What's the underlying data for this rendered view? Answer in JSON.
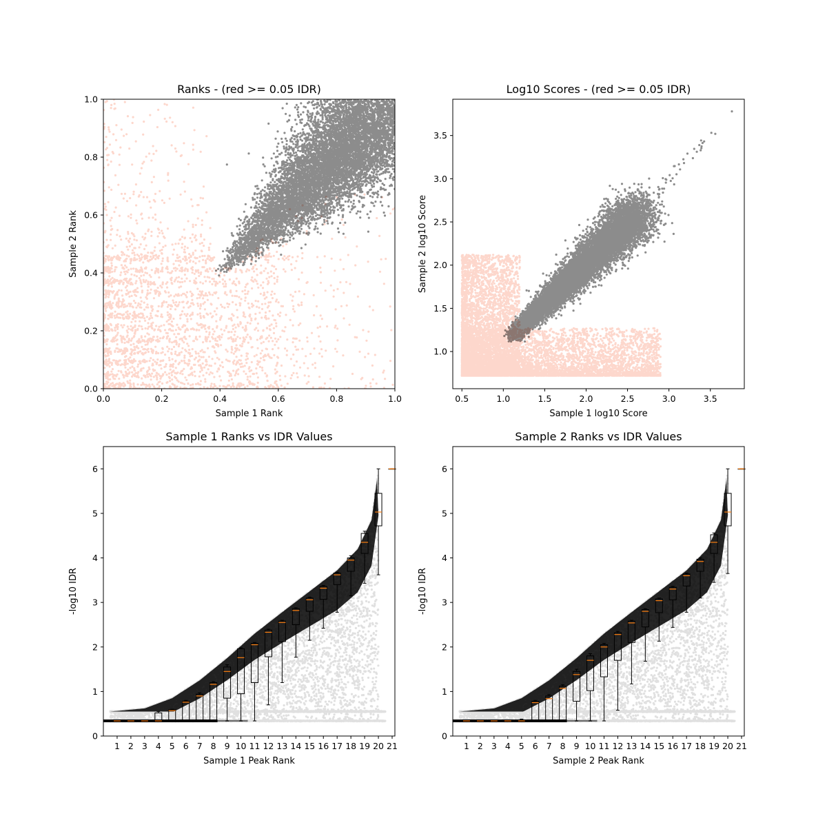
{
  "figure": {
    "background": "#ffffff",
    "colors": {
      "pass": "#000000",
      "fail": "#fa8c6e",
      "median": "#ff7f0e"
    }
  },
  "chart_data": [
    {
      "id": "ranks",
      "type": "scatter",
      "title": "Ranks - (red >= 0.05 IDR)",
      "xlabel": "Sample 1 Rank",
      "ylabel": "Sample 2 Rank",
      "xlim": [
        0,
        1
      ],
      "ylim": [
        0,
        1
      ],
      "xticks": [
        "0.0",
        "0.2",
        "0.4",
        "0.6",
        "0.8",
        "1.0"
      ],
      "yticks": [
        "0.0",
        "0.2",
        "0.4",
        "0.6",
        "0.8",
        "1.0"
      ],
      "series": [
        {
          "color": "#000000",
          "region": "wedge along diagonal: x>=0.38, y>=0.35, bounded by lower curve from (0.40,0.35) to (1.0,0.95) and upper curve from (0.38,0.42) to (0.95,1.0)"
        },
        {
          "color": "#fa8c6e",
          "region": "remaining points, dense near x<0.5 or y<0.5 with banded structure at low ranks"
        }
      ]
    },
    {
      "id": "scores",
      "type": "scatter",
      "title": "Log10 Scores - (red >= 0.05 IDR)",
      "xlabel": "Sample 1 log10 Score",
      "ylabel": "Sample 2 log10 Score",
      "xlim": [
        0.39,
        3.91
      ],
      "ylim": [
        0.57,
        3.92
      ],
      "xticks": [
        0.5,
        1.0,
        1.5,
        2.0,
        2.5,
        3.0,
        3.5
      ],
      "yticks": [
        1.0,
        1.5,
        2.0,
        2.5,
        3.0,
        3.5
      ],
      "series": [
        {
          "color": "#000000",
          "region": "elongated cloud from (1.0,1.12) to (2.8,2.85), outliers up to (3.76,3.78)"
        },
        {
          "color": "#fa8c6e",
          "region": "x from 0.5 to 2.9 at y 0.72 to 1.3; also x 0.5 to 1.1 up to y 2.2"
        }
      ]
    },
    {
      "id": "s1_idr",
      "type": "scatter",
      "title": "Sample 1 Ranks vs IDR Values",
      "xlabel": "Sample 1 Peak Rank",
      "ylabel": "-log10 IDR",
      "xlim": [
        0,
        21.2
      ],
      "ylim": [
        0,
        6.5
      ],
      "xticks": [
        1,
        2,
        3,
        4,
        5,
        6,
        7,
        8,
        9,
        10,
        11,
        12,
        13,
        14,
        15,
        16,
        17,
        18,
        19,
        20,
        21
      ],
      "yticks": [
        0,
        1,
        2,
        3,
        4,
        5,
        6
      ],
      "upper_envelope": [
        [
          0.5,
          0.55
        ],
        [
          3,
          0.62
        ],
        [
          5,
          0.85
        ],
        [
          7,
          1.25
        ],
        [
          9,
          1.75
        ],
        [
          11,
          2.3
        ],
        [
          13,
          2.78
        ],
        [
          15,
          3.25
        ],
        [
          17,
          3.72
        ],
        [
          18.5,
          4.2
        ],
        [
          19.5,
          4.85
        ],
        [
          20,
          6.0
        ]
      ],
      "boxes": [
        {
          "pos": 1,
          "q1": 0.34,
          "median": 0.34,
          "q3": 0.34,
          "wlo": 0.34,
          "whi": 0.34
        },
        {
          "pos": 2,
          "q1": 0.34,
          "median": 0.34,
          "q3": 0.34,
          "wlo": 0.34,
          "whi": 0.34
        },
        {
          "pos": 3,
          "q1": 0.34,
          "median": 0.34,
          "q3": 0.34,
          "wlo": 0.34,
          "whi": 0.34
        },
        {
          "pos": 4,
          "q1": 0.34,
          "median": 0.34,
          "q3": 0.52,
          "wlo": 0.34,
          "whi": 0.55
        },
        {
          "pos": 5,
          "q1": 0.34,
          "median": 0.57,
          "q3": 0.59,
          "wlo": 0.34,
          "whi": 0.6
        },
        {
          "pos": 6,
          "q1": 0.34,
          "median": 0.76,
          "q3": 0.78,
          "wlo": 0.34,
          "whi": 0.8
        },
        {
          "pos": 7,
          "q1": 0.34,
          "median": 0.9,
          "q3": 0.94,
          "wlo": 0.34,
          "whi": 0.97
        },
        {
          "pos": 8,
          "q1": 0.34,
          "median": 1.16,
          "q3": 1.2,
          "wlo": 0.34,
          "whi": 1.22
        },
        {
          "pos": 9,
          "q1": 0.85,
          "median": 1.45,
          "q3": 1.55,
          "wlo": 0.34,
          "whi": 1.6
        },
        {
          "pos": 10,
          "q1": 0.95,
          "median": 1.76,
          "q3": 1.96,
          "wlo": 0.34,
          "whi": 1.98
        },
        {
          "pos": 11,
          "q1": 1.2,
          "median": 2.05,
          "q3": 2.08,
          "wlo": 0.34,
          "whi": 2.1
        },
        {
          "pos": 12,
          "q1": 1.78,
          "median": 2.33,
          "q3": 2.38,
          "wlo": 0.7,
          "whi": 2.4
        },
        {
          "pos": 13,
          "q1": 2.12,
          "median": 2.55,
          "q3": 2.58,
          "wlo": 1.2,
          "whi": 2.6
        },
        {
          "pos": 14,
          "q1": 2.5,
          "median": 2.82,
          "q3": 2.86,
          "wlo": 1.77,
          "whi": 2.88
        },
        {
          "pos": 15,
          "q1": 2.8,
          "median": 3.06,
          "q3": 3.1,
          "wlo": 2.15,
          "whi": 3.12
        },
        {
          "pos": 16,
          "q1": 3.07,
          "median": 3.32,
          "q3": 3.36,
          "wlo": 2.42,
          "whi": 3.38
        },
        {
          "pos": 17,
          "q1": 3.4,
          "median": 3.62,
          "q3": 3.66,
          "wlo": 2.78,
          "whi": 3.68
        },
        {
          "pos": 18,
          "q1": 3.7,
          "median": 3.95,
          "q3": 4.0,
          "wlo": 3.15,
          "whi": 4.05
        },
        {
          "pos": 19,
          "q1": 4.1,
          "median": 4.35,
          "q3": 4.55,
          "wlo": 3.43,
          "whi": 4.6
        },
        {
          "pos": 20,
          "q1": 4.72,
          "median": 5.03,
          "q3": 5.45,
          "wlo": 3.62,
          "whi": 6.0
        },
        {
          "pos": 21,
          "q1": 6.0,
          "median": 6.0,
          "q3": 6.0,
          "wlo": 6.0,
          "whi": 6.0
        }
      ]
    },
    {
      "id": "s2_idr",
      "type": "scatter",
      "title": "Sample 2 Ranks vs IDR Values",
      "xlabel": "Sample 2 Peak Rank",
      "ylabel": "-log10 IDR",
      "xlim": [
        0,
        21.2
      ],
      "ylim": [
        0,
        6.5
      ],
      "xticks": [
        1,
        2,
        3,
        4,
        5,
        6,
        7,
        8,
        9,
        10,
        11,
        12,
        13,
        14,
        15,
        16,
        17,
        18,
        19,
        20,
        21
      ],
      "yticks": [
        0,
        1,
        2,
        3,
        4,
        5,
        6
      ],
      "upper_envelope": [
        [
          0.5,
          0.55
        ],
        [
          3,
          0.62
        ],
        [
          5,
          0.85
        ],
        [
          7,
          1.25
        ],
        [
          9,
          1.75
        ],
        [
          11,
          2.3
        ],
        [
          13,
          2.78
        ],
        [
          15,
          3.25
        ],
        [
          17,
          3.72
        ],
        [
          18.5,
          4.2
        ],
        [
          19.5,
          4.85
        ],
        [
          20,
          6.0
        ]
      ],
      "boxes": [
        {
          "pos": 1,
          "q1": 0.34,
          "median": 0.34,
          "q3": 0.34,
          "wlo": 0.34,
          "whi": 0.34
        },
        {
          "pos": 2,
          "q1": 0.34,
          "median": 0.34,
          "q3": 0.34,
          "wlo": 0.34,
          "whi": 0.34
        },
        {
          "pos": 3,
          "q1": 0.34,
          "median": 0.34,
          "q3": 0.34,
          "wlo": 0.34,
          "whi": 0.34
        },
        {
          "pos": 4,
          "q1": 0.34,
          "median": 0.34,
          "q3": 0.34,
          "wlo": 0.34,
          "whi": 0.36
        },
        {
          "pos": 5,
          "q1": 0.34,
          "median": 0.34,
          "q3": 0.36,
          "wlo": 0.34,
          "whi": 0.38
        },
        {
          "pos": 6,
          "q1": 0.34,
          "median": 0.75,
          "q3": 0.78,
          "wlo": 0.34,
          "whi": 0.8
        },
        {
          "pos": 7,
          "q1": 0.34,
          "median": 0.84,
          "q3": 0.9,
          "wlo": 0.34,
          "whi": 0.93
        },
        {
          "pos": 8,
          "q1": 0.34,
          "median": 1.07,
          "q3": 1.12,
          "wlo": 0.34,
          "whi": 1.15
        },
        {
          "pos": 9,
          "q1": 0.78,
          "median": 1.38,
          "q3": 1.45,
          "wlo": 0.34,
          "whi": 1.5
        },
        {
          "pos": 10,
          "q1": 1.02,
          "median": 1.7,
          "q3": 1.8,
          "wlo": 0.34,
          "whi": 1.85
        },
        {
          "pos": 11,
          "q1": 1.33,
          "median": 2.0,
          "q3": 2.05,
          "wlo": 0.34,
          "whi": 2.08
        },
        {
          "pos": 12,
          "q1": 1.7,
          "median": 2.28,
          "q3": 2.32,
          "wlo": 0.58,
          "whi": 2.35
        },
        {
          "pos": 13,
          "q1": 2.1,
          "median": 2.54,
          "q3": 2.58,
          "wlo": 1.17,
          "whi": 2.6
        },
        {
          "pos": 14,
          "q1": 2.45,
          "median": 2.8,
          "q3": 2.84,
          "wlo": 1.68,
          "whi": 2.86
        },
        {
          "pos": 15,
          "q1": 2.77,
          "median": 3.04,
          "q3": 3.08,
          "wlo": 2.13,
          "whi": 3.1
        },
        {
          "pos": 16,
          "q1": 3.06,
          "median": 3.3,
          "q3": 3.34,
          "wlo": 2.44,
          "whi": 3.36
        },
        {
          "pos": 17,
          "q1": 3.37,
          "median": 3.6,
          "q3": 3.64,
          "wlo": 2.78,
          "whi": 3.66
        },
        {
          "pos": 18,
          "q1": 3.7,
          "median": 3.92,
          "q3": 3.97,
          "wlo": 3.1,
          "whi": 4.0
        },
        {
          "pos": 19,
          "q1": 4.1,
          "median": 4.35,
          "q3": 4.52,
          "wlo": 3.45,
          "whi": 4.56
        },
        {
          "pos": 20,
          "q1": 4.72,
          "median": 5.03,
          "q3": 5.45,
          "wlo": 3.65,
          "whi": 6.0
        },
        {
          "pos": 21,
          "q1": 6.0,
          "median": 6.0,
          "q3": 6.0,
          "wlo": 6.0,
          "whi": 6.0
        }
      ]
    }
  ]
}
